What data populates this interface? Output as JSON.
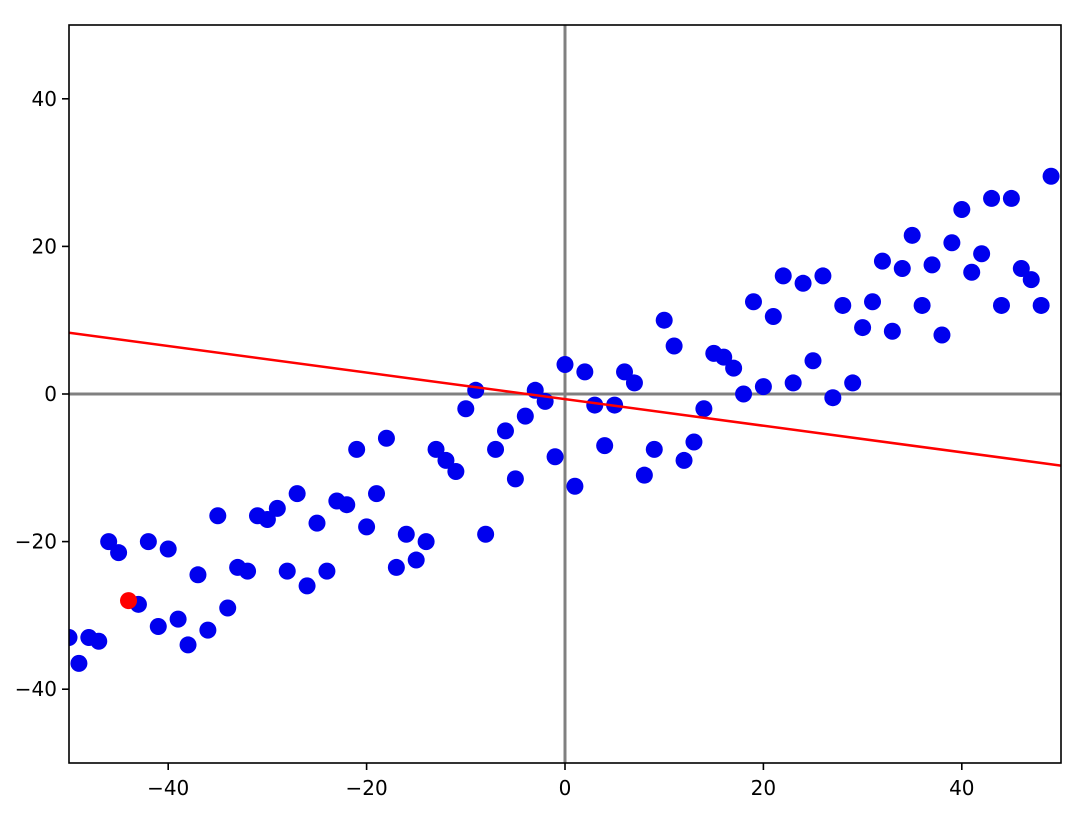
{
  "chart_data": {
    "type": "scatter",
    "title": "",
    "xlabel": "",
    "ylabel": "",
    "xlim": [
      -50,
      50
    ],
    "ylim": [
      -50,
      50
    ],
    "grid": false,
    "x_ticks": [
      {
        "value": -40,
        "label": "−40"
      },
      {
        "value": -20,
        "label": "−20"
      },
      {
        "value": 0,
        "label": "0"
      },
      {
        "value": 20,
        "label": "20"
      },
      {
        "value": 40,
        "label": "40"
      }
    ],
    "y_ticks": [
      {
        "value": -40,
        "label": "−40"
      },
      {
        "value": -20,
        "label": "−20"
      },
      {
        "value": 0,
        "label": "0"
      },
      {
        "value": 20,
        "label": "20"
      },
      {
        "value": 40,
        "label": "40"
      }
    ],
    "reference_lines": {
      "color": "#808080",
      "x": 0,
      "y": 0
    },
    "series": [
      {
        "type": "scatter",
        "color": "#0000ee",
        "points": [
          [
            -50,
            -33
          ],
          [
            -49,
            -36.5
          ],
          [
            -48,
            -33
          ],
          [
            -47,
            -33.5
          ],
          [
            -46,
            -20
          ],
          [
            -45,
            -21.5
          ],
          [
            -43,
            -28.5
          ],
          [
            -42,
            -20
          ],
          [
            -41,
            -31.5
          ],
          [
            -40,
            -21
          ],
          [
            -39,
            -30.5
          ],
          [
            -38,
            -34
          ],
          [
            -37,
            -24.5
          ],
          [
            -36,
            -32
          ],
          [
            -35,
            -16.5
          ],
          [
            -34,
            -29
          ],
          [
            -33,
            -23.5
          ],
          [
            -32,
            -24
          ],
          [
            -31,
            -16.5
          ],
          [
            -30,
            -17
          ],
          [
            -29,
            -15.5
          ],
          [
            -28,
            -24
          ],
          [
            -27,
            -13.5
          ],
          [
            -26,
            -26
          ],
          [
            -25,
            -17.5
          ],
          [
            -24,
            -24
          ],
          [
            -23,
            -14.5
          ],
          [
            -22,
            -15
          ],
          [
            -21,
            -7.5
          ],
          [
            -20,
            -18
          ],
          [
            -19,
            -13.5
          ],
          [
            -18,
            -6
          ],
          [
            -17,
            -23.5
          ],
          [
            -16,
            -19
          ],
          [
            -15,
            -22.5
          ],
          [
            -14,
            -20
          ],
          [
            -13,
            -7.5
          ],
          [
            -12,
            -9
          ],
          [
            -11,
            -10.5
          ],
          [
            -10,
            -2
          ],
          [
            -9,
            0.5
          ],
          [
            -8,
            -19
          ],
          [
            -7,
            -7.5
          ],
          [
            -6,
            -5
          ],
          [
            -5,
            -11.5
          ],
          [
            -4,
            -3
          ],
          [
            -3,
            0.5
          ],
          [
            -2,
            -1
          ],
          [
            -1,
            -8.5
          ],
          [
            0,
            4
          ],
          [
            1,
            -12.5
          ],
          [
            2,
            3
          ],
          [
            3,
            -1.5
          ],
          [
            4,
            -7
          ],
          [
            5,
            -1.5
          ],
          [
            6,
            3
          ],
          [
            7,
            1.5
          ],
          [
            8,
            -11
          ],
          [
            9,
            -7.5
          ],
          [
            10,
            10
          ],
          [
            11,
            6.5
          ],
          [
            12,
            -9
          ],
          [
            13,
            -6.5
          ],
          [
            14,
            -2
          ],
          [
            15,
            5.5
          ],
          [
            16,
            5
          ],
          [
            17,
            3.5
          ],
          [
            18,
            0
          ],
          [
            19,
            12.5
          ],
          [
            20,
            1
          ],
          [
            21,
            10.5
          ],
          [
            22,
            16
          ],
          [
            23,
            1.5
          ],
          [
            24,
            15
          ],
          [
            25,
            4.5
          ],
          [
            26,
            16
          ],
          [
            27,
            -0.5
          ],
          [
            28,
            12
          ],
          [
            29,
            1.5
          ],
          [
            30,
            9
          ],
          [
            31,
            12.5
          ],
          [
            32,
            18
          ],
          [
            33,
            8.5
          ],
          [
            34,
            17
          ],
          [
            35,
            21.5
          ],
          [
            36,
            12
          ],
          [
            37,
            17.5
          ],
          [
            38,
            8
          ],
          [
            39,
            20.5
          ],
          [
            40,
            25
          ],
          [
            41,
            16.5
          ],
          [
            42,
            19
          ],
          [
            43,
            26.5
          ],
          [
            44,
            12
          ],
          [
            45,
            26.5
          ],
          [
            46,
            17
          ],
          [
            47,
            15.5
          ],
          [
            48,
            12
          ],
          [
            49,
            29.5
          ]
        ]
      },
      {
        "type": "scatter",
        "color": "#ff0000",
        "points": [
          [
            -44,
            -28
          ]
        ]
      },
      {
        "type": "line",
        "color": "#ff0000",
        "points": [
          [
            -50,
            8.3
          ],
          [
            50,
            -9.7
          ]
        ]
      }
    ]
  }
}
